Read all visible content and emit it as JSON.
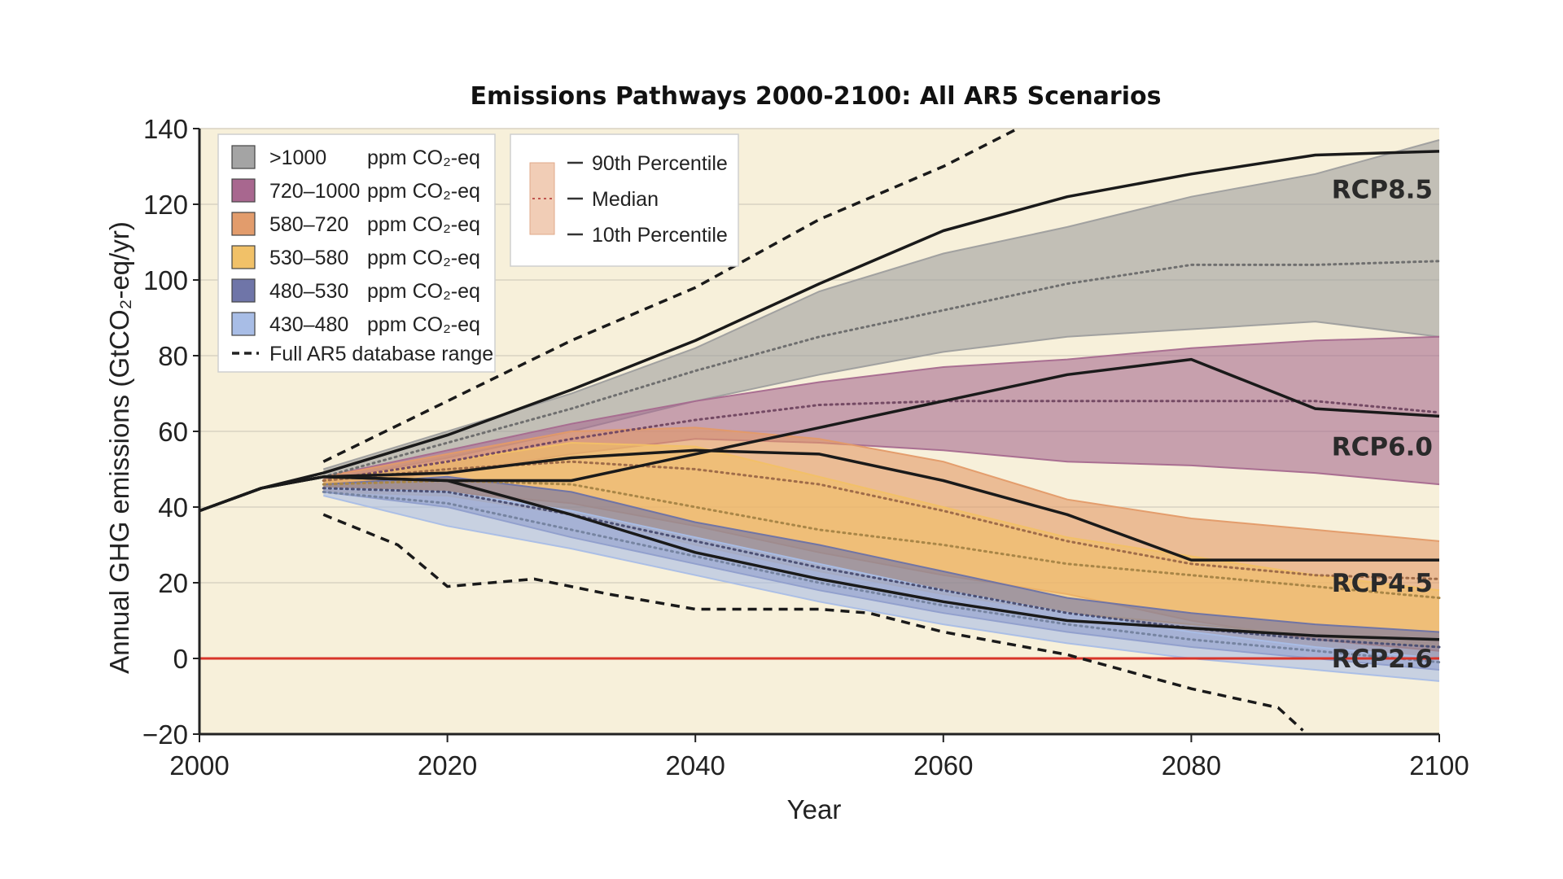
{
  "chart_data": {
    "type": "area",
    "title": "Emissions Pathways 2000-2100: All AR5 Scenarios",
    "xlabel": "Year",
    "ylabel": "Annual GHG emissions (GtCO₂-eq/yr)",
    "xlim": [
      2000,
      2100
    ],
    "ylim": [
      -20,
      140
    ],
    "x_ticks": [
      "2000",
      "2020",
      "2040",
      "2060",
      "2080",
      "2100"
    ],
    "y_ticks": [
      "−20",
      "0",
      "20",
      "40",
      "60",
      "80",
      "100",
      "120",
      "140"
    ],
    "grid": "horizontal",
    "legend_position": "top-left",
    "background_color": "#f7f0da",
    "zero_line_color": "#d8352a",
    "legend": {
      "bands": [
        {
          "range": ">1000",
          "unit": "ppm CO₂-eq",
          "color": "#a4a4a4"
        },
        {
          "range": "720–1000",
          "unit": "ppm CO₂-eq",
          "color": "#a8678f"
        },
        {
          "range": "580–720",
          "unit": "ppm CO₂-eq",
          "color": "#e29c6c"
        },
        {
          "range": "530–580",
          "unit": "ppm CO₂-eq",
          "color": "#f1c168"
        },
        {
          "range": "480–530",
          "unit": "ppm CO₂-eq",
          "color": "#6f75a8"
        },
        {
          "range": "430–480",
          "unit": "ppm CO₂-eq",
          "color": "#a8bde6"
        }
      ],
      "database_label": "Full AR5 database range",
      "percentiles": [
        "90th Percentile",
        "Median",
        "10th Percentile"
      ]
    },
    "bands": [
      {
        "name": ">1000",
        "color": "#9e9e9e",
        "x": [
          2010,
          2020,
          2030,
          2040,
          2050,
          2060,
          2070,
          2080,
          2090,
          2100
        ],
        "upper": [
          50,
          60,
          70,
          82,
          97,
          107,
          114,
          122,
          128,
          137
        ],
        "median": [
          48,
          57,
          66,
          76,
          85,
          92,
          99,
          104,
          104,
          105
        ],
        "lower": [
          47,
          53,
          60,
          68,
          75,
          81,
          85,
          87,
          89,
          85
        ]
      },
      {
        "name": "720–1000",
        "color": "#a66a8f",
        "x": [
          2010,
          2020,
          2030,
          2040,
          2050,
          2060,
          2070,
          2080,
          2090,
          2100
        ],
        "upper": [
          48,
          55,
          62,
          68,
          73,
          77,
          79,
          82,
          84,
          85
        ],
        "median": [
          47,
          52,
          58,
          63,
          67,
          68,
          68,
          68,
          68,
          65
        ],
        "lower": [
          46,
          49,
          54,
          58,
          57,
          55,
          52,
          51,
          49,
          46
        ]
      },
      {
        "name": "580–720",
        "color": "#e39a68",
        "x": [
          2010,
          2020,
          2030,
          2040,
          2050,
          2060,
          2070,
          2080,
          2090,
          2100
        ],
        "upper": [
          48,
          54,
          60,
          61,
          58,
          52,
          42,
          37,
          34,
          31
        ],
        "median": [
          47,
          50,
          52,
          50,
          46,
          39,
          31,
          25,
          22,
          21
        ],
        "lower": [
          44,
          44,
          41,
          35,
          28,
          22,
          17,
          10,
          5,
          2
        ]
      },
      {
        "name": "530–580",
        "color": "#f2c066",
        "x": [
          2010,
          2020,
          2030,
          2040,
          2050,
          2060,
          2070,
          2080,
          2090,
          2100
        ],
        "upper": [
          47,
          52,
          57,
          56,
          48,
          40,
          32,
          27,
          22,
          18
        ],
        "median": [
          46,
          47,
          46,
          40,
          34,
          30,
          25,
          22,
          19,
          16
        ],
        "lower": [
          44,
          43,
          38,
          30,
          23,
          17,
          12,
          9,
          6,
          3
        ]
      },
      {
        "name": "480–530",
        "color": "#6c72a6",
        "x": [
          2010,
          2020,
          2030,
          2040,
          2050,
          2060,
          2070,
          2080,
          2090,
          2100
        ],
        "upper": [
          46,
          48,
          44,
          36,
          30,
          23,
          16,
          12,
          9,
          7
        ],
        "median": [
          45,
          44,
          38,
          31,
          24,
          18,
          12,
          8,
          5,
          3
        ],
        "lower": [
          44,
          40,
          32,
          25,
          18,
          12,
          7,
          3,
          0,
          -3
        ]
      },
      {
        "name": "430–480",
        "color": "#a9bde6",
        "x": [
          2010,
          2020,
          2030,
          2040,
          2050,
          2060,
          2070,
          2080,
          2090,
          2100
        ],
        "upper": [
          45,
          44,
          39,
          32,
          25,
          18,
          12,
          7,
          3,
          0
        ],
        "median": [
          44,
          41,
          34,
          27,
          20,
          14,
          9,
          5,
          2,
          -1
        ],
        "lower": [
          43,
          35,
          29,
          22,
          15,
          9,
          4,
          0,
          -3,
          -6
        ]
      }
    ],
    "rcp_lines": [
      {
        "name": "RCP8.5",
        "x": [
          2000,
          2005,
          2010,
          2020,
          2030,
          2040,
          2050,
          2060,
          2070,
          2080,
          2090,
          2100
        ],
        "y": [
          39,
          45,
          49,
          59,
          71,
          84,
          99,
          113,
          122,
          128,
          133,
          134
        ],
        "label": "RCP8.5",
        "label_y": 124
      },
      {
        "name": "RCP6.0",
        "x": [
          2000,
          2005,
          2010,
          2020,
          2030,
          2040,
          2050,
          2060,
          2070,
          2080,
          2090,
          2100
        ],
        "y": [
          39,
          45,
          48,
          47,
          47,
          54,
          61,
          68,
          75,
          79,
          66,
          64
        ],
        "label": "RCP6.0",
        "label_y": 56
      },
      {
        "name": "RCP4.5",
        "x": [
          2000,
          2005,
          2010,
          2020,
          2030,
          2040,
          2050,
          2060,
          2070,
          2080,
          2090,
          2100
        ],
        "y": [
          39,
          45,
          48,
          49,
          53,
          55,
          54,
          47,
          38,
          26,
          26,
          26
        ],
        "label": "RCP4.5",
        "label_y": 20
      },
      {
        "name": "RCP2.6",
        "x": [
          2000,
          2005,
          2010,
          2020,
          2030,
          2040,
          2050,
          2060,
          2070,
          2080,
          2090,
          2100
        ],
        "y": [
          39,
          45,
          48,
          47,
          38,
          28,
          21,
          15,
          10,
          8,
          6,
          5
        ],
        "label": "RCP2.6",
        "label_y": 0
      }
    ],
    "database_range": {
      "upper": {
        "x": [
          2010,
          2020,
          2030,
          2040,
          2050,
          2060,
          2066
        ],
        "y": [
          52,
          68,
          84,
          98,
          116,
          130,
          140
        ]
      },
      "lower": {
        "x": [
          2010,
          2016,
          2020,
          2027,
          2033,
          2040,
          2046,
          2050,
          2054,
          2060,
          2070,
          2080,
          2087,
          2089
        ],
        "y": [
          38,
          30,
          19,
          21,
          17,
          13,
          13,
          13,
          12,
          7,
          1,
          -8,
          -13,
          -19
        ]
      }
    }
  }
}
